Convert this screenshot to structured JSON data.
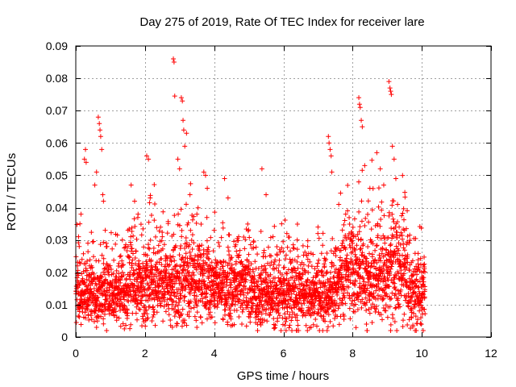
{
  "chart_data": {
    "type": "scatter",
    "title": "Day 275 of 2019, Rate Of TEC Index for receiver lare",
    "xlabel": "GPS time / hours",
    "ylabel": "ROTI / TECUs",
    "xlim": [
      0,
      12
    ],
    "ylim": [
      0,
      0.09
    ],
    "xticks": [
      0,
      2,
      4,
      6,
      8,
      10,
      12
    ],
    "yticks": [
      0,
      0.01,
      0.02,
      0.03,
      0.04,
      0.05,
      0.06,
      0.07,
      0.08,
      0.09
    ],
    "grid": true,
    "marker": "+",
    "series_color": "#ff0000",
    "data_range_hours": [
      0,
      10.1
    ],
    "series": [
      {
        "name": "ROTI",
        "points": [
          [
            0.02,
            0.015
          ],
          [
            0.05,
            0.022
          ],
          [
            0.08,
            0.031
          ],
          [
            0.1,
            0.028
          ],
          [
            0.12,
            0.035
          ],
          [
            0.15,
            0.038
          ],
          [
            0.18,
            0.024
          ],
          [
            0.2,
            0.018
          ],
          [
            0.25,
            0.055
          ],
          [
            0.28,
            0.058
          ],
          [
            0.3,
            0.054
          ],
          [
            0.35,
            0.029
          ],
          [
            0.45,
            0.022
          ],
          [
            0.55,
            0.047
          ],
          [
            0.6,
            0.051
          ],
          [
            0.65,
            0.068
          ],
          [
            0.68,
            0.066
          ],
          [
            0.7,
            0.064
          ],
          [
            0.72,
            0.062
          ],
          [
            0.75,
            0.058
          ],
          [
            0.78,
            0.044
          ],
          [
            0.8,
            0.042
          ],
          [
            0.85,
            0.033
          ],
          [
            0.9,
            0.028
          ],
          [
            1.0,
            0.016
          ],
          [
            1.2,
            0.012
          ],
          [
            1.5,
            0.025
          ],
          [
            1.6,
            0.047
          ],
          [
            1.7,
            0.042
          ],
          [
            1.8,
            0.038
          ],
          [
            2.05,
            0.056
          ],
          [
            2.1,
            0.055
          ],
          [
            2.15,
            0.043
          ],
          [
            2.5,
            0.031
          ],
          [
            2.82,
            0.086
          ],
          [
            2.84,
            0.085
          ],
          [
            2.86,
            0.0745
          ],
          [
            2.95,
            0.055
          ],
          [
            3.0,
            0.052
          ],
          [
            3.05,
            0.074
          ],
          [
            3.08,
            0.073
          ],
          [
            3.1,
            0.067
          ],
          [
            3.12,
            0.064
          ],
          [
            3.15,
            0.059
          ],
          [
            3.2,
            0.063
          ],
          [
            3.3,
            0.044
          ],
          [
            3.5,
            0.038
          ],
          [
            3.7,
            0.051
          ],
          [
            3.75,
            0.05
          ],
          [
            3.8,
            0.046
          ],
          [
            4.0,
            0.033
          ],
          [
            4.3,
            0.049
          ],
          [
            4.4,
            0.043
          ],
          [
            4.6,
            0.028
          ],
          [
            5.0,
            0.022
          ],
          [
            5.38,
            0.052
          ],
          [
            5.5,
            0.044
          ],
          [
            5.7,
            0.031
          ],
          [
            6.1,
            0.032
          ],
          [
            6.4,
            0.03
          ],
          [
            6.7,
            0.028
          ],
          [
            7.0,
            0.034
          ],
          [
            7.3,
            0.062
          ],
          [
            7.32,
            0.06
          ],
          [
            7.35,
            0.058
          ],
          [
            7.38,
            0.056
          ],
          [
            7.4,
            0.051
          ],
          [
            7.6,
            0.041
          ],
          [
            7.8,
            0.038
          ],
          [
            8.0,
            0.029
          ],
          [
            8.18,
            0.074
          ],
          [
            8.2,
            0.072
          ],
          [
            8.22,
            0.071
          ],
          [
            8.25,
            0.067
          ],
          [
            8.28,
            0.065
          ],
          [
            8.35,
            0.053
          ],
          [
            8.5,
            0.046
          ],
          [
            8.7,
            0.057
          ],
          [
            8.8,
            0.052
          ],
          [
            8.9,
            0.047
          ],
          [
            9.05,
            0.079
          ],
          [
            9.08,
            0.077
          ],
          [
            9.1,
            0.076
          ],
          [
            9.12,
            0.075
          ],
          [
            9.15,
            0.059
          ],
          [
            9.2,
            0.055
          ],
          [
            9.25,
            0.049
          ],
          [
            9.3,
            0.041
          ],
          [
            9.5,
            0.033
          ],
          [
            9.7,
            0.023
          ],
          [
            9.9,
            0.021
          ],
          [
            10.0,
            0.018
          ],
          [
            10.08,
            0.012
          ],
          [
            4.8,
            0.004
          ],
          [
            6.8,
            0.003
          ],
          [
            0.6,
            0.003
          ],
          [
            9.1,
            0.002
          ],
          [
            3.5,
            0.003
          ],
          [
            2.2,
            0.005
          ],
          [
            8.4,
            0.004
          ]
        ]
      }
    ]
  }
}
